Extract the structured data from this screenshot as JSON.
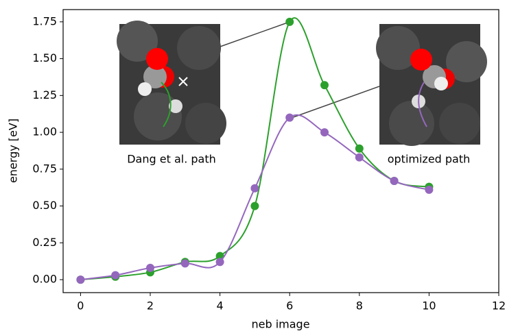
{
  "chart_data": {
    "type": "line",
    "xlabel": "neb image",
    "ylabel": "energy [eV]",
    "x": [
      0,
      1,
      2,
      3,
      4,
      5,
      6,
      7,
      8,
      9,
      10
    ],
    "series": [
      {
        "color": "#2ca02c",
        "values": [
          0,
          0.02,
          0.05,
          0.12,
          0.16,
          0.5,
          1.75,
          1.32,
          0.89,
          0.67,
          0.63
        ]
      },
      {
        "color": "#9467bd",
        "values": [
          0,
          0.03,
          0.08,
          0.11,
          0.12,
          0.62,
          1.1,
          1.0,
          0.83,
          0.67,
          0.61
        ]
      }
    ],
    "xlim": [
      -0.5,
      12
    ],
    "xticks": [
      0,
      2,
      4,
      6,
      8,
      10,
      12
    ],
    "ylim": [
      -0.088,
      1.833
    ],
    "yticks": [
      {
        "value": 0,
        "label": "0.00"
      },
      {
        "value": 0.25,
        "label": "0.25"
      },
      {
        "value": 0.5,
        "label": "0.50"
      },
      {
        "value": 0.75,
        "label": "0.75"
      },
      {
        "value": 1,
        "label": "1.00"
      },
      {
        "value": 1.25,
        "label": "1.25"
      },
      {
        "value": 1.5,
        "label": "1.50"
      },
      {
        "value": 1.75,
        "label": "1.75"
      }
    ],
    "annotations": [
      {
        "text": "Dang et al. path"
      },
      {
        "text": "optimized path"
      }
    ]
  }
}
